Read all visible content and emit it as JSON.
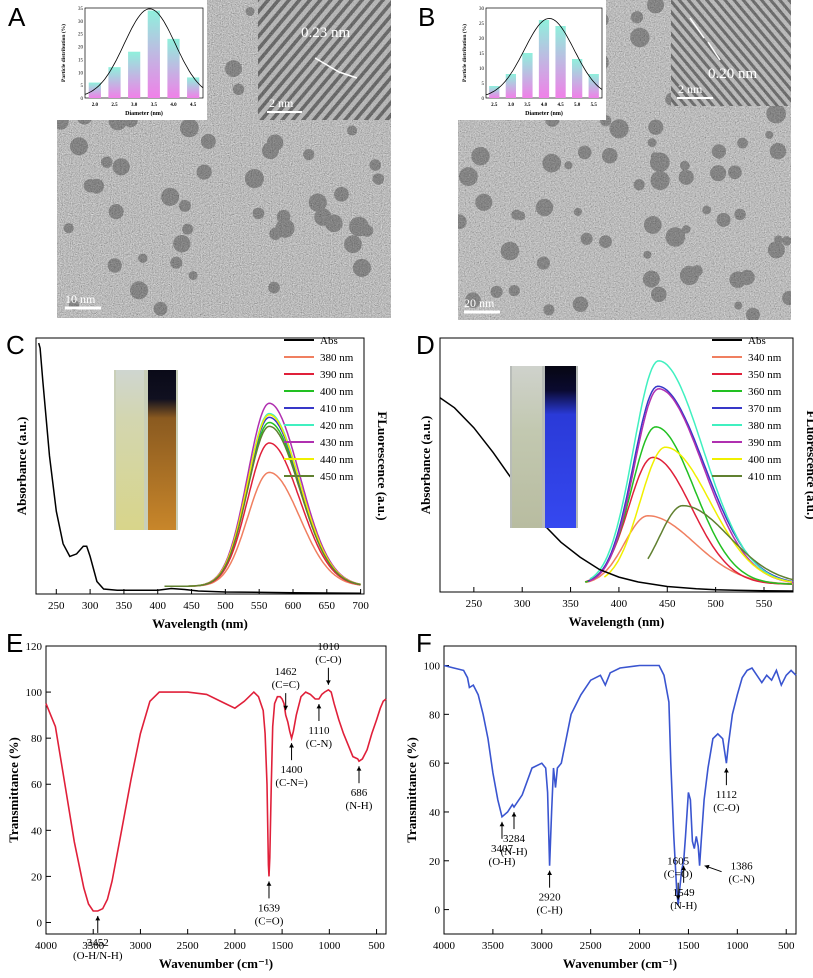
{
  "panel_labels": [
    "A",
    "B",
    "C",
    "D",
    "E",
    "F"
  ],
  "tem_A": {
    "lattice": "0.23 nm",
    "inset_scale": "2 nm",
    "scale": "10 nm",
    "hist": {
      "ylabel": "Particle distribution (%)",
      "xlabel": "Diameter (nm)",
      "categories": [
        "2.0",
        "2.5",
        "3.0",
        "3.5",
        "4.0",
        "4.5"
      ],
      "values": [
        6,
        12,
        18,
        34,
        23,
        8
      ],
      "yticks": [
        "0",
        "5",
        "10",
        "15",
        "20",
        "25",
        "30",
        "35"
      ],
      "ymax": 35
    }
  },
  "tem_B": {
    "lattice": "0.20 nm",
    "inset_scale": "2 nm",
    "scale": "20 nm",
    "hist": {
      "ylabel": "Particle distribution (%)",
      "xlabel": "Diameter (nm)",
      "categories": [
        "2.5",
        "3.0",
        "3.5",
        "4.0",
        "4.5",
        "5.0",
        "5.5"
      ],
      "values": [
        4,
        8,
        15,
        26,
        24,
        13,
        8
      ],
      "yticks": [
        "0",
        "5",
        "10",
        "15",
        "20",
        "25",
        "30"
      ],
      "ymax": 30
    }
  },
  "chart_data": [
    {
      "id": "C",
      "type": "line",
      "xlabel": "Wavelength (nm)",
      "ylabel_left": "Absorbance (a.u.)",
      "ylabel_right": "FLuorescence (a.u.)",
      "xlim": [
        220,
        705
      ],
      "xticks": [
        250,
        300,
        350,
        400,
        450,
        500,
        550,
        600,
        650,
        700
      ],
      "legend": [
        "Abs",
        "380 nm",
        "390 nm",
        "400 nm",
        "410 nm",
        "420 nm",
        "430 nm",
        "440 nm",
        "450 nm"
      ],
      "colors": [
        "#000000",
        "#f07f60",
        "#e0203a",
        "#22c022",
        "#3838c8",
        "#40f0c0",
        "#b030b0",
        "#f0f000",
        "#608030"
      ],
      "abs": {
        "x": [
          224,
          226,
          230,
          240,
          250,
          260,
          270,
          280,
          290,
          295,
          300,
          310,
          320,
          340,
          360,
          380,
          400,
          420,
          440,
          460,
          500,
          600,
          700
        ],
        "y": [
          1.0,
          0.98,
          0.85,
          0.55,
          0.33,
          0.2,
          0.15,
          0.16,
          0.19,
          0.19,
          0.15,
          0.05,
          0.02,
          0.015,
          0.015,
          0.015,
          0.015,
          0.022,
          0.018,
          0.012,
          0.008,
          0.005,
          0.003
        ]
      },
      "fl": {
        "center": 565,
        "width_left": 32,
        "width_right": 45,
        "start": 410,
        "end": 700,
        "peaks": [
          0.445,
          0.56,
          0.64,
          0.66,
          0.675,
          0.715,
          0.67,
          0.625,
          0.585
        ]
      }
    },
    {
      "id": "D",
      "type": "line",
      "xlabel": "Wavelength (nm)",
      "ylabel_left": "Absorbance (a.u.)",
      "ylabel_right": "FLuorescence (a.u.)",
      "xlim": [
        215,
        580
      ],
      "xticks": [
        250,
        300,
        350,
        400,
        450,
        500,
        550
      ],
      "legend": [
        "Abs",
        "340 nm",
        "350 nm",
        "360 nm",
        "370 nm",
        "380 nm",
        "390 nm",
        "400 nm",
        "410 nm"
      ],
      "colors": [
        "#000000",
        "#f07f60",
        "#e0203a",
        "#22c022",
        "#3838c8",
        "#40f0c0",
        "#b030b0",
        "#f0f000",
        "#608030"
      ],
      "abs": {
        "x": [
          215,
          230,
          250,
          270,
          290,
          300,
          320,
          340,
          360,
          380,
          400,
          420,
          450,
          480,
          500,
          520,
          550,
          580
        ],
        "y": [
          0.78,
          0.74,
          0.66,
          0.56,
          0.45,
          0.39,
          0.28,
          0.2,
          0.14,
          0.09,
          0.06,
          0.04,
          0.022,
          0.013,
          0.009,
          0.007,
          0.005,
          0.004
        ]
      },
      "fl": {
        "curves": [
          {
            "c": 430,
            "wl": 24,
            "wr": 48,
            "p": 0.27,
            "s": 366,
            "e": 580
          },
          {
            "c": 435,
            "wl": 25,
            "wr": 40,
            "p": 0.5,
            "s": 365,
            "e": 580
          },
          {
            "c": 438,
            "wl": 25,
            "wr": 40,
            "p": 0.62,
            "s": 365,
            "e": 580
          },
          {
            "c": 440,
            "wl": 25,
            "wr": 48,
            "p": 0.78,
            "s": 368,
            "e": 580
          },
          {
            "c": 441,
            "wl": 26,
            "wr": 46,
            "p": 0.88,
            "s": 370,
            "e": 580
          },
          {
            "c": 441,
            "wl": 25,
            "wr": 46,
            "p": 0.77,
            "s": 370,
            "e": 580
          },
          {
            "c": 448,
            "wl": 26,
            "wr": 46,
            "p": 0.54,
            "s": 385,
            "e": 580
          },
          {
            "c": 466,
            "wl": 24,
            "wr": 48,
            "p": 0.31,
            "s": 430,
            "e": 580
          }
        ]
      }
    },
    {
      "id": "E",
      "type": "line",
      "xlabel": "Wavenumber (cm⁻¹)",
      "ylabel": "Transmittance (%)",
      "xlim": [
        4000,
        400
      ],
      "ylim": [
        -5,
        120
      ],
      "xticks": [
        4000,
        3500,
        3000,
        2500,
        2000,
        1500,
        1000,
        500
      ],
      "yticks": [
        0,
        20,
        40,
        60,
        80,
        100,
        120
      ],
      "color": "#e0203a",
      "x": [
        4000,
        3900,
        3800,
        3700,
        3600,
        3550,
        3500,
        3452,
        3400,
        3350,
        3300,
        3200,
        3100,
        3000,
        2900,
        2800,
        2700,
        2500,
        2300,
        2100,
        2000,
        1900,
        1800,
        1750,
        1700,
        1680,
        1660,
        1645,
        1639,
        1630,
        1615,
        1600,
        1580,
        1550,
        1520,
        1500,
        1480,
        1462,
        1440,
        1420,
        1400,
        1380,
        1350,
        1300,
        1250,
        1200,
        1150,
        1110,
        1080,
        1050,
        1010,
        980,
        950,
        900,
        850,
        800,
        750,
        700,
        686,
        650,
        600,
        550,
        500,
        460,
        430,
        400
      ],
      "y": [
        95,
        85,
        60,
        35,
        15,
        8,
        5,
        5,
        6,
        10,
        18,
        40,
        62,
        82,
        96,
        100,
        100,
        100,
        99,
        95,
        93,
        96,
        100,
        98,
        92,
        82,
        60,
        25,
        20,
        28,
        60,
        85,
        95,
        98,
        98,
        97,
        95,
        90,
        87,
        83,
        80,
        83,
        90,
        98,
        100,
        99,
        97,
        97,
        99,
        100,
        101,
        100,
        95,
        88,
        82,
        77,
        72,
        71,
        70,
        71,
        75,
        82,
        88,
        93,
        96,
        97
      ],
      "annotations": [
        {
          "text1": "3452",
          "text2": "(O-H/N-H)",
          "x": 3452,
          "y": 5,
          "dir": "up"
        },
        {
          "text1": "1639",
          "text2": "(C=O)",
          "x": 1639,
          "y": 20,
          "dir": "up"
        },
        {
          "text1": "1462",
          "text2": "(C=C)",
          "x": 1462,
          "y": 90,
          "dir": "down"
        },
        {
          "text1": "1400",
          "text2": "(C-N=)",
          "x": 1400,
          "y": 80,
          "dir": "up"
        },
        {
          "text1": "1110",
          "text2": "(C-N)",
          "x": 1110,
          "y": 97,
          "dir": "up"
        },
        {
          "text1": "1010",
          "text2": "(C-O)",
          "x": 1010,
          "y": 101,
          "dir": "down"
        },
        {
          "text1": "686",
          "text2": "(N-H)",
          "x": 686,
          "y": 70,
          "dir": "up"
        }
      ]
    },
    {
      "id": "F",
      "type": "line",
      "xlabel": "Wavenumber (cm⁻¹)",
      "ylabel": "Transmittance (%)",
      "xlim": [
        4000,
        400
      ],
      "ylim": [
        -10,
        108
      ],
      "xticks": [
        4000,
        3500,
        3000,
        2500,
        2000,
        1500,
        1000,
        500
      ],
      "yticks": [
        0,
        20,
        40,
        60,
        80,
        100
      ],
      "color": "#3a55d0",
      "x": [
        4000,
        3900,
        3800,
        3760,
        3740,
        3700,
        3650,
        3600,
        3550,
        3500,
        3450,
        3407,
        3350,
        3300,
        3284,
        3200,
        3100,
        3000,
        2960,
        2940,
        2920,
        2900,
        2880,
        2860,
        2840,
        2800,
        2700,
        2600,
        2500,
        2400,
        2350,
        2300,
        2200,
        2000,
        1900,
        1800,
        1750,
        1700,
        1680,
        1650,
        1620,
        1605,
        1590,
        1570,
        1549,
        1530,
        1500,
        1480,
        1460,
        1440,
        1420,
        1400,
        1386,
        1370,
        1340,
        1300,
        1250,
        1200,
        1150,
        1112,
        1090,
        1050,
        1000,
        950,
        900,
        850,
        800,
        750,
        700,
        650,
        600,
        550,
        500,
        450,
        400
      ],
      "y": [
        100,
        99,
        98,
        95,
        91,
        92,
        88,
        80,
        70,
        56,
        45,
        38,
        40,
        43,
        42,
        47,
        58,
        60,
        58,
        48,
        18,
        40,
        58,
        50,
        58,
        60,
        80,
        88,
        94,
        96,
        92,
        97,
        99,
        100,
        100,
        100,
        96,
        85,
        60,
        30,
        8,
        2,
        8,
        16,
        20,
        30,
        48,
        45,
        28,
        25,
        30,
        26,
        18,
        28,
        45,
        58,
        70,
        72,
        70,
        60,
        68,
        80,
        88,
        95,
        98,
        99,
        96,
        93,
        96,
        94,
        98,
        92,
        96,
        98,
        96
      ],
      "annotations": [
        {
          "text1": "3407",
          "text2": "(O-H)",
          "x": 3407,
          "y": 38,
          "dir": "up"
        },
        {
          "text1": "3284",
          "text2": "(N-H)",
          "x": 3284,
          "y": 42,
          "dir": "up"
        },
        {
          "text1": "2920",
          "text2": "(C-H)",
          "x": 2920,
          "y": 18,
          "dir": "up"
        },
        {
          "text1": "1605",
          "text2": "(C=O)",
          "x": 1605,
          "y": 2,
          "dir": "down"
        },
        {
          "text1": "1549",
          "text2": "(N-H)",
          "x": 1549,
          "y": 20,
          "dir": "up"
        },
        {
          "text1": "1386",
          "text2": "(C-N)",
          "x": 1386,
          "y": 18,
          "dir": "side"
        },
        {
          "text1": "1112",
          "text2": "(C-O)",
          "x": 1112,
          "y": 60,
          "dir": "up"
        }
      ]
    }
  ]
}
